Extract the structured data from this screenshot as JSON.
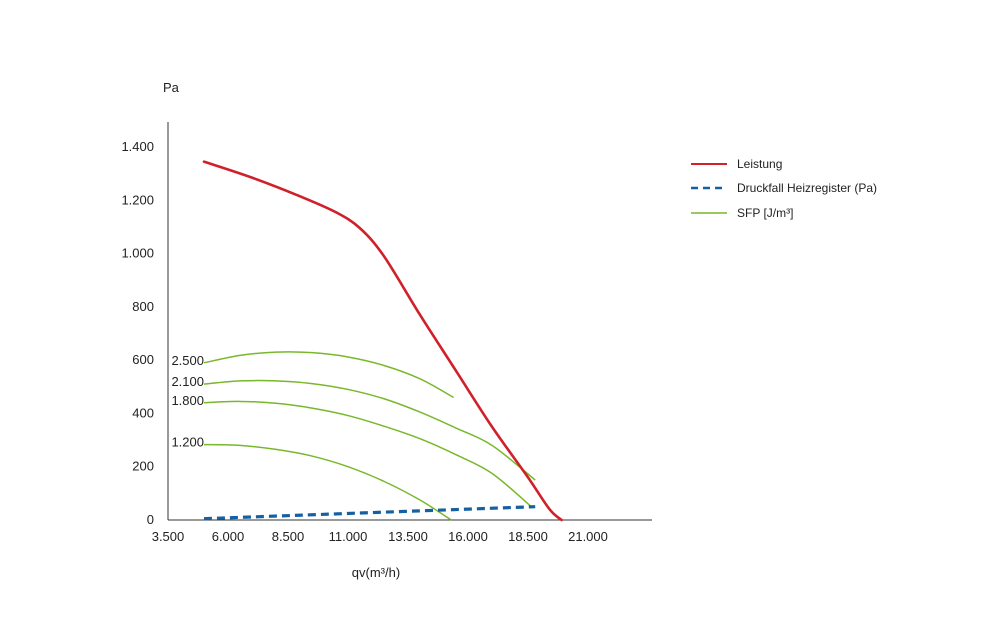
{
  "chart_data": {
    "type": "line",
    "xlabel": "qv(m³/h)",
    "ylabel": "Pa",
    "xticks": [
      {
        "value": 3500,
        "label": "3.500"
      },
      {
        "value": 6000,
        "label": "6.000"
      },
      {
        "value": 8500,
        "label": "8.500"
      },
      {
        "value": 11000,
        "label": "11.000"
      },
      {
        "value": 13500,
        "label": "13.500"
      },
      {
        "value": 16000,
        "label": "16.000"
      },
      {
        "value": 18500,
        "label": "18.500"
      },
      {
        "value": 21000,
        "label": "21.000"
      }
    ],
    "yticks": [
      {
        "value": 0,
        "label": "0"
      },
      {
        "value": 200,
        "label": "200"
      },
      {
        "value": 400,
        "label": "400"
      },
      {
        "value": 600,
        "label": "600"
      },
      {
        "value": 800,
        "label": "800"
      },
      {
        "value": 1000,
        "label": "1.000"
      },
      {
        "value": 1200,
        "label": "1.200"
      },
      {
        "value": 1400,
        "label": "1.400"
      }
    ],
    "xlim": [
      3500,
      24000
    ],
    "ylim": [
      0,
      1480
    ],
    "grid": false,
    "legend_position": "top-right",
    "series": [
      {
        "name": "Leistung",
        "color": "#d0202a",
        "style": "solid",
        "points": [
          [
            5000,
            1345
          ],
          [
            7000,
            1285
          ],
          [
            9000,
            1215
          ],
          [
            10500,
            1155
          ],
          [
            11500,
            1095
          ],
          [
            12500,
            990
          ],
          [
            14000,
            770
          ],
          [
            15500,
            560
          ],
          [
            17000,
            350
          ],
          [
            18500,
            160
          ],
          [
            19400,
            40
          ],
          [
            19900,
            0
          ]
        ]
      },
      {
        "name": "Druckfall Heizregister (Pa)",
        "color": "#1560a0",
        "style": "dashed",
        "points": [
          [
            5000,
            5
          ],
          [
            18800,
            50
          ]
        ]
      },
      {
        "name": "SFP [J/m³]",
        "color": "#78b82a",
        "style": "solid",
        "points": []
      }
    ],
    "sfp_curves": [
      {
        "label": "2.500",
        "points": [
          [
            5000,
            590
          ],
          [
            6500,
            618
          ],
          [
            8000,
            630
          ],
          [
            9500,
            628
          ],
          [
            11000,
            612
          ],
          [
            12500,
            580
          ],
          [
            14000,
            530
          ],
          [
            15400,
            460
          ]
        ]
      },
      {
        "label": "2.100",
        "points": [
          [
            5000,
            510
          ],
          [
            6500,
            522
          ],
          [
            8000,
            522
          ],
          [
            9500,
            512
          ],
          [
            11000,
            490
          ],
          [
            12500,
            455
          ],
          [
            14000,
            405
          ],
          [
            15500,
            345
          ],
          [
            17000,
            280
          ],
          [
            18800,
            150
          ]
        ]
      },
      {
        "label": "1.800",
        "points": [
          [
            5000,
            440
          ],
          [
            6500,
            445
          ],
          [
            8000,
            438
          ],
          [
            9500,
            420
          ],
          [
            11000,
            392
          ],
          [
            12500,
            352
          ],
          [
            14000,
            305
          ],
          [
            15500,
            245
          ],
          [
            17000,
            175
          ],
          [
            18700,
            45
          ]
        ]
      },
      {
        "label": "1.200",
        "points": [
          [
            5000,
            283
          ],
          [
            6500,
            280
          ],
          [
            8000,
            265
          ],
          [
            9500,
            240
          ],
          [
            11000,
            200
          ],
          [
            12500,
            145
          ],
          [
            14000,
            75
          ],
          [
            15300,
            0
          ]
        ]
      }
    ]
  }
}
